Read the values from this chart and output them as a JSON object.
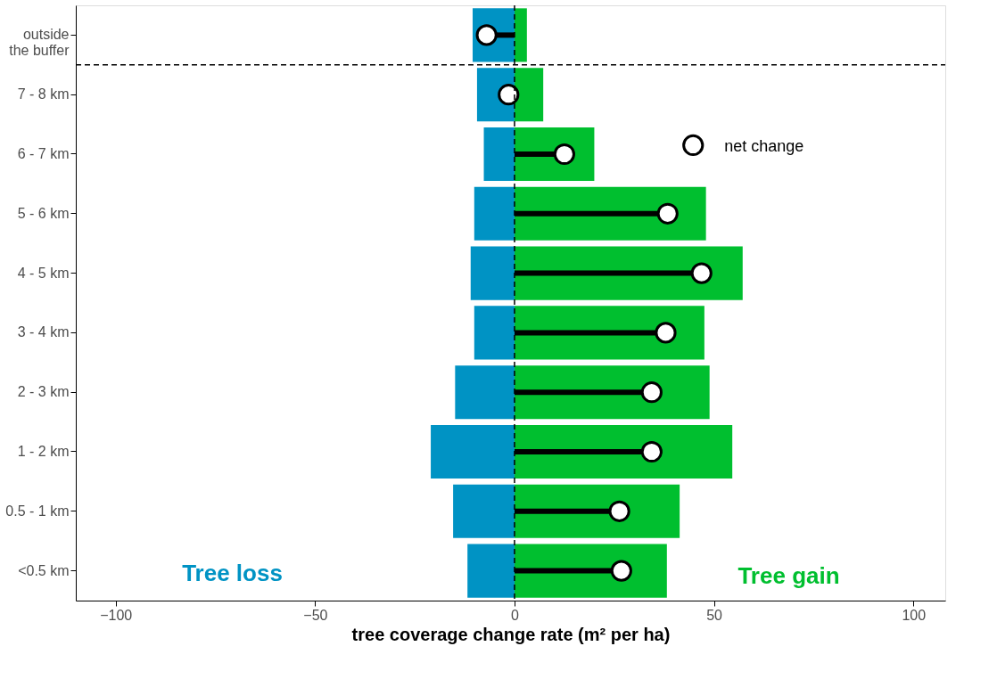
{
  "chart_data": {
    "type": "bar",
    "orientation": "horizontal",
    "xlabel": "tree coverage change rate (m² per ha)",
    "categories": [
      "outside\nthe buffer",
      "7 - 8 km",
      "6 - 7 km",
      "5 - 6 km",
      "4 - 5 km",
      "3 - 4 km",
      "2 - 3 km",
      "1 - 2 km",
      "0.5 - 1 km",
      "<0.5 km"
    ],
    "series": [
      {
        "color": "#0093c4",
        "values": [
          -10.5,
          -9.4,
          -7.7,
          -10.1,
          -11,
          -10.1,
          -14.9,
          -21,
          -15.4,
          -11.8
        ]
      },
      {
        "color": "#00bf2f",
        "values": [
          3.1,
          7.2,
          20,
          48,
          57.2,
          47.6,
          48.9,
          54.6,
          41.4,
          38.2
        ]
      },
      {
        "type": "lollipop",
        "name": "net change",
        "color": "#000000",
        "marker": "circle",
        "values": [
          -7,
          -1.5,
          12.5,
          38.4,
          46.9,
          37.9,
          34.4,
          34.4,
          26.3,
          26.8
        ]
      }
    ],
    "xlim": [
      -110,
      108
    ],
    "xticks": [
      -100,
      -50,
      0,
      50,
      100
    ],
    "stacked": true,
    "ref_lines": [
      {
        "axis": "x",
        "value": 0,
        "line_style": "dashed"
      }
    ],
    "annotations": [
      "Tree loss",
      "Tree gain"
    ],
    "legend": "top right",
    "grid": false
  }
}
